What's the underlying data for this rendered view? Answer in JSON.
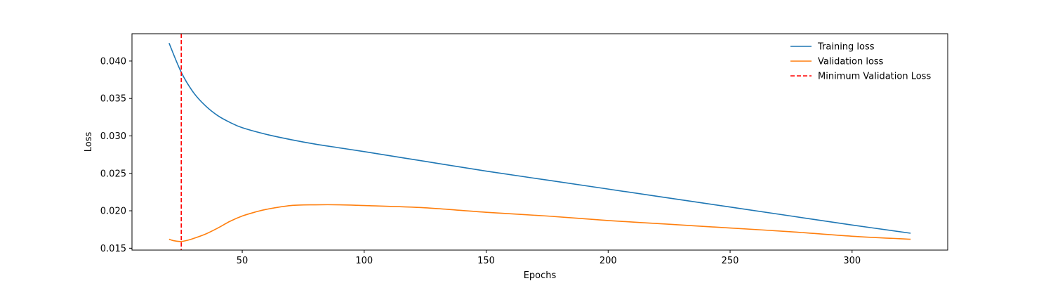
{
  "chart_data": {
    "type": "line",
    "title": "",
    "xlabel": "Epochs",
    "ylabel": "Loss",
    "xlim": [
      4.8,
      339.2
    ],
    "ylim": [
      0.01475,
      0.04365
    ],
    "x_ticks": [
      50,
      100,
      150,
      200,
      250,
      300
    ],
    "y_ticks": [
      0.015,
      0.02,
      0.025,
      0.03,
      0.035,
      0.04
    ],
    "x_tick_labels": [
      "50",
      "100",
      "150",
      "200",
      "250",
      "300"
    ],
    "y_tick_labels": [
      "0.015",
      "0.020",
      "0.025",
      "0.030",
      "0.035",
      "0.040"
    ],
    "grid": false,
    "legend_position": "top-right",
    "series": [
      {
        "name": "Training loss",
        "color": "#1f77b4",
        "style": "solid",
        "x": [
          20,
          25,
          30,
          35,
          40,
          45,
          50,
          60,
          70,
          80,
          90,
          100,
          125,
          150,
          175,
          200,
          225,
          250,
          275,
          300,
          324
        ],
        "y": [
          0.0424,
          0.0385,
          0.0358,
          0.034,
          0.0327,
          0.0318,
          0.0311,
          0.0302,
          0.0295,
          0.0289,
          0.0284,
          0.0279,
          0.0266,
          0.0253,
          0.0241,
          0.0229,
          0.0217,
          0.0205,
          0.0193,
          0.0181,
          0.017
        ]
      },
      {
        "name": "Validation loss",
        "color": "#ff7f0e",
        "style": "solid",
        "x": [
          20,
          22,
          25,
          28,
          30,
          35,
          40,
          45,
          50,
          55,
          60,
          70,
          80,
          90,
          100,
          125,
          150,
          175,
          200,
          225,
          250,
          275,
          300,
          324
        ],
        "y": [
          0.0162,
          0.016,
          0.0159,
          0.0161,
          0.0163,
          0.0169,
          0.0177,
          0.0186,
          0.0193,
          0.0198,
          0.0202,
          0.0207,
          0.0208,
          0.0208,
          0.0207,
          0.0204,
          0.0198,
          0.0193,
          0.0187,
          0.0182,
          0.0177,
          0.0172,
          0.0166,
          0.0162
        ]
      }
    ],
    "vlines": [
      {
        "name": "Minimum Validation Loss",
        "color": "#ff0000",
        "style": "dashed",
        "x": 25
      }
    ]
  }
}
